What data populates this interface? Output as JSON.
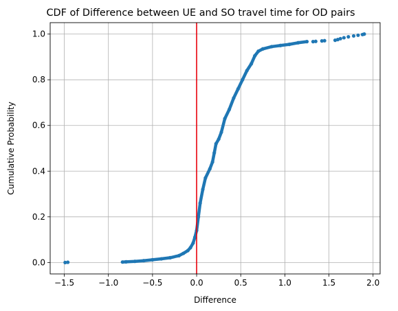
{
  "chart_data": {
    "type": "scatter",
    "title": "CDF of Difference between UE and SO travel time for OD pairs",
    "xlabel": "Difference",
    "ylabel": "Cumulative Probability",
    "xlim": [
      -1.66,
      2.08
    ],
    "ylim": [
      -0.05,
      1.05
    ],
    "xticks": [
      -1.5,
      -1.0,
      -0.5,
      0.0,
      0.5,
      1.0,
      1.5,
      2.0
    ],
    "xtick_labels": [
      "−1.5",
      "−1.0",
      "−0.5",
      "0.0",
      "0.5",
      "1.0",
      "1.5",
      "2.0"
    ],
    "yticks": [
      0.0,
      0.2,
      0.4,
      0.6,
      0.8,
      1.0
    ],
    "ytick_labels": [
      "0.0",
      "0.2",
      "0.4",
      "0.6",
      "0.8",
      "1.0"
    ],
    "grid": true,
    "vline": {
      "x": 0.0,
      "color": "#e8000b"
    },
    "series_color": "#1f77b4",
    "cdf_curve": [
      [
        -1.49,
        0.0
      ],
      [
        -1.46,
        0.001
      ],
      [
        -0.84,
        0.002
      ],
      [
        -0.8,
        0.003
      ],
      [
        -0.7,
        0.005
      ],
      [
        -0.6,
        0.008
      ],
      [
        -0.5,
        0.012
      ],
      [
        -0.4,
        0.016
      ],
      [
        -0.3,
        0.021
      ],
      [
        -0.2,
        0.03
      ],
      [
        -0.15,
        0.04
      ],
      [
        -0.1,
        0.052
      ],
      [
        -0.07,
        0.065
      ],
      [
        -0.04,
        0.085
      ],
      [
        -0.02,
        0.11
      ],
      [
        0.0,
        0.14
      ],
      [
        0.02,
        0.2
      ],
      [
        0.04,
        0.26
      ],
      [
        0.07,
        0.32
      ],
      [
        0.1,
        0.37
      ],
      [
        0.15,
        0.41
      ],
      [
        0.18,
        0.44
      ],
      [
        0.2,
        0.48
      ],
      [
        0.22,
        0.52
      ],
      [
        0.25,
        0.54
      ],
      [
        0.28,
        0.57
      ],
      [
        0.32,
        0.63
      ],
      [
        0.37,
        0.67
      ],
      [
        0.42,
        0.72
      ],
      [
        0.47,
        0.76
      ],
      [
        0.52,
        0.8
      ],
      [
        0.57,
        0.84
      ],
      [
        0.62,
        0.87
      ],
      [
        0.66,
        0.905
      ],
      [
        0.7,
        0.925
      ],
      [
        0.75,
        0.935
      ],
      [
        0.85,
        0.945
      ],
      [
        0.95,
        0.95
      ],
      [
        1.05,
        0.955
      ],
      [
        1.15,
        0.962
      ],
      [
        1.25,
        0.967
      ]
    ],
    "scatter_points": [
      [
        1.32,
        0.967
      ],
      [
        1.35,
        0.968
      ],
      [
        1.42,
        0.97
      ],
      [
        1.45,
        0.971
      ],
      [
        1.57,
        0.973
      ],
      [
        1.6,
        0.976
      ],
      [
        1.63,
        0.98
      ],
      [
        1.67,
        0.984
      ],
      [
        1.72,
        0.988
      ],
      [
        1.78,
        0.992
      ],
      [
        1.83,
        0.995
      ],
      [
        1.88,
        0.998
      ],
      [
        1.9,
        1.0
      ]
    ]
  }
}
